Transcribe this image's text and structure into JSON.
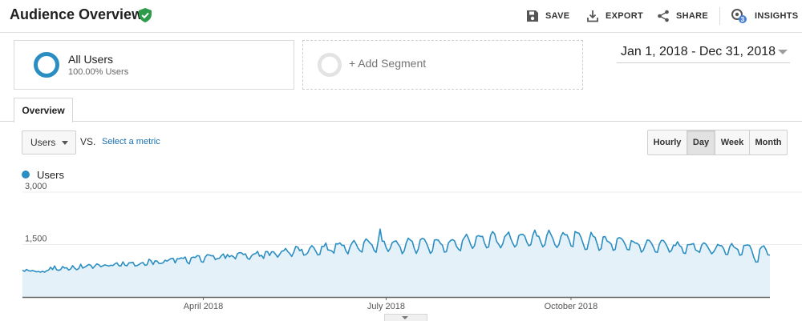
{
  "header": {
    "title": "Audience Overview",
    "actions": [
      {
        "label": "SAVE",
        "icon": "save-icon"
      },
      {
        "label": "EXPORT",
        "icon": "export-icon"
      },
      {
        "label": "SHARE",
        "icon": "share-icon"
      },
      {
        "label": "INSIGHTS",
        "icon": "insights-icon",
        "badge": "3"
      }
    ]
  },
  "segments": {
    "all_users": {
      "title": "All Users",
      "subtitle": "100.00% Users"
    },
    "add_segment": {
      "label": "+ Add Segment"
    }
  },
  "date_range": {
    "label": "Jan 1, 2018 - Dec 31, 2018"
  },
  "tabs": [
    {
      "label": "Overview",
      "active": true
    }
  ],
  "toolbar": {
    "metric_selected": "Users",
    "vs_label": "VS.",
    "select_metric_link": "Select a metric",
    "granularity": [
      {
        "label": "Hourly",
        "active": false
      },
      {
        "label": "Day",
        "active": true
      },
      {
        "label": "Week",
        "active": false
      },
      {
        "label": "Month",
        "active": false
      }
    ]
  },
  "colors": {
    "accent": "#2b8ec2",
    "fill": "#e5f1f9",
    "verified": "#2e9b4b",
    "link": "#1a6fb0",
    "badge": "#4a7fd4"
  },
  "chart_data": {
    "type": "area",
    "legend": [
      "Users"
    ],
    "ylim": [
      0,
      3000
    ],
    "yticks": [
      {
        "value": 1500,
        "label": "1,500"
      },
      {
        "value": 3000,
        "label": "3,000"
      }
    ],
    "xticks": [
      {
        "day": 90,
        "label": "April 2018"
      },
      {
        "day": 181,
        "label": "July 2018"
      },
      {
        "day": 273,
        "label": "October 2018"
      }
    ],
    "grid": true,
    "series": [
      {
        "name": "Users",
        "x_start": "2018-01-01",
        "x_end": "2018-12-31",
        "values": [
          770,
          733,
          789,
          755,
          739,
          759,
          739,
          720,
          730,
          710,
          735,
          708,
          751,
          769,
          850,
          785,
          888,
          780,
          761,
          784,
          872,
          828,
          836,
          771,
          803,
          897,
          825,
          779,
          812,
          937,
          827,
          855,
          891,
          931,
          907,
          819,
          884,
          947,
          923,
          867,
          891,
          918,
          902,
          887,
          907,
          899,
          949,
          978,
          897,
          886,
          1006,
          911,
          893,
          977,
          980,
          994,
          888,
          899,
          927,
          971,
          985,
          906,
          922,
          1080,
          1035,
          929,
          1035,
          1027,
          960,
          958,
          979,
          1051,
          1028,
          1066,
          1100,
          1107,
          975,
          1094,
          1091,
          1120,
          1103,
          1144,
          993,
          947,
          1122,
          1140,
          1130,
          1184,
          1174,
          1010,
          994,
          1148,
          1209,
          1201,
          1179,
          1180,
          1068,
          1101,
          1108,
          1182,
          1230,
          1105,
          1214,
          1148,
          1185,
          1154,
          1091,
          1237,
          1268,
          1263,
          1213,
          1233,
          1106,
          1077,
          1178,
          1227,
          1240,
          1306,
          1167,
          1193,
          1104,
          1299,
          1297,
          1185,
          1293,
          1292,
          1220,
          1139,
          1220,
          1308,
          1324,
          1389,
          1301,
          1243,
          1160,
          1278,
          1445,
          1429,
          1324,
          1362,
          1196,
          1210,
          1267,
          1397,
          1469,
          1413,
          1307,
          1202,
          1217,
          1451,
          1443,
          1544,
          1346,
          1338,
          1315,
          1254,
          1525,
          1513,
          1547,
          1477,
          1479,
          1318,
          1233,
          1429,
          1542,
          1617,
          1522,
          1395,
          1322,
          1282,
          1570,
          1661,
          1609,
          1541,
          1489,
          1335,
          1276,
          1583,
          1943,
          1599,
          1592,
          1413,
          1302,
          1390,
          1554,
          1590,
          1605,
          1510,
          1426,
          1237,
          1322,
          1550,
          1683,
          1630,
          1591,
          1388,
          1245,
          1376,
          1639,
          1677,
          1655,
          1549,
          1407,
          1247,
          1309,
          1628,
          1639,
          1625,
          1536,
          1481,
          1283,
          1297,
          1548,
          1612,
          1641,
          1610,
          1450,
          1368,
          1322,
          1617,
          1706,
          1794,
          1674,
          1505,
          1389,
          1472,
          1731,
          1756,
          1730,
          1733,
          1536,
          1408,
          1431,
          1766,
          1870,
          1804,
          1587,
          1508,
          1406,
          1515,
          1724,
          1787,
          1858,
          1674,
          1539,
          1431,
          1494,
          1757,
          1788,
          1794,
          1739,
          1571,
          1465,
          1497,
          1770,
          1913,
          1747,
          1733,
          1565,
          1434,
          1495,
          1767,
          1911,
          1790,
          1667,
          1497,
          1416,
          1500,
          1732,
          1845,
          1779,
          1778,
          1642,
          1462,
          1440,
          1874,
          1842,
          1822,
          1704,
          1534,
          1359,
          1367,
          1626,
          1850,
          1739,
          1706,
          1524,
          1332,
          1386,
          1719,
          1728,
          1598,
          1569,
          1514,
          1334,
          1363,
          1667,
          1698,
          1677,
          1612,
          1498,
          1359,
          1350,
          1611,
          1586,
          1544,
          1533,
          1479,
          1283,
          1336,
          1493,
          1632,
          1616,
          1543,
          1429,
          1289,
          1276,
          1515,
          1620,
          1616,
          1535,
          1426,
          1282,
          1330,
          1483,
          1472,
          1582,
          1472,
          1429,
          1261,
          1244,
          1497,
          1497,
          1510,
          1528,
          1347,
          1316,
          1275,
          1480,
          1548,
          1520,
          1437,
          1332,
          1236,
          1291,
          1392,
          1505,
          1473,
          1465,
          1381,
          1221,
          1218,
          1440,
          1530,
          1434,
          1397,
          1361,
          1195,
          1212,
          1471,
          1480,
          1490,
          1465,
          1326,
          1130,
          999,
          1005,
          1369,
          1436,
          1464,
          1358,
          1205,
          1199
        ]
      }
    ]
  }
}
